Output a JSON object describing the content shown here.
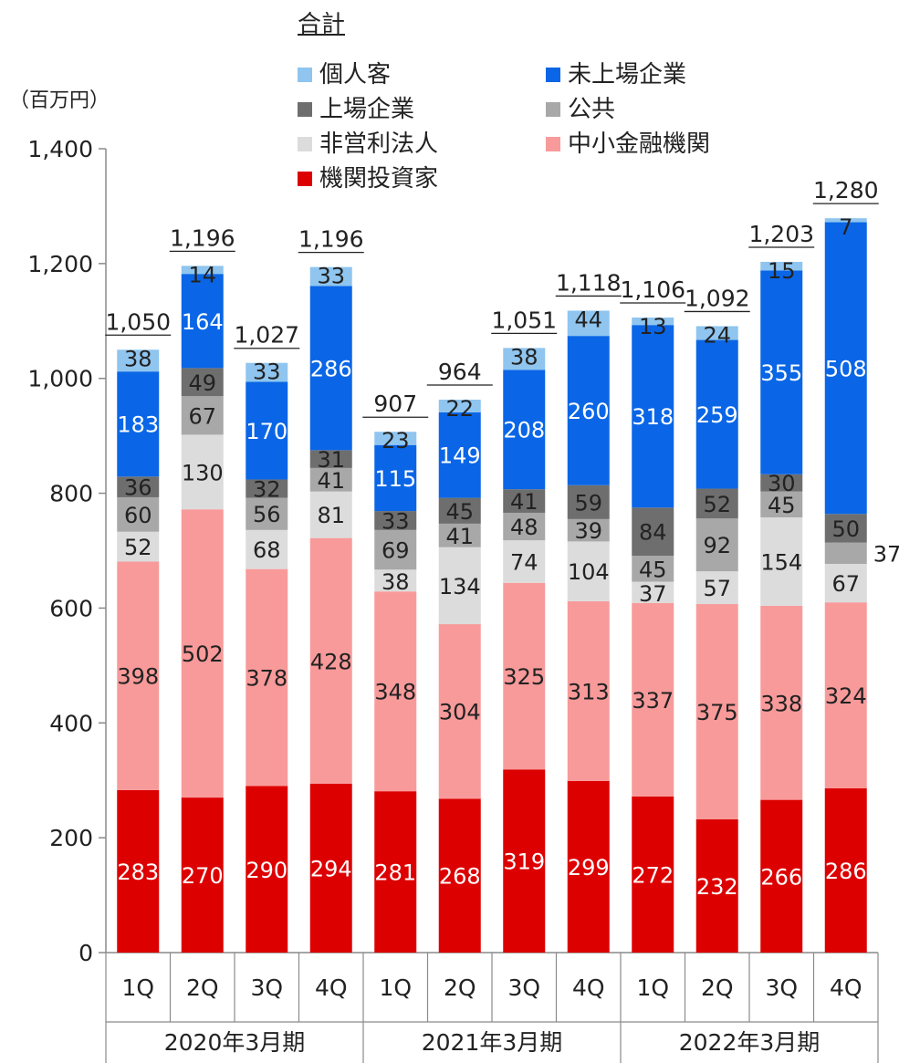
{
  "unit_label": "（百万円）",
  "legend_title": "合計",
  "colors": {
    "個人客": "#8fc5ef",
    "未上場企業": "#0a66e6",
    "上場企業": "#6e6e6e",
    "公共": "#a8a8a8",
    "非営利法人": "#dcdcdc",
    "中小金融機関": "#f89a9a",
    "機関投資家": "#dd0000"
  },
  "chart_data": {
    "type": "bar",
    "stacked": true,
    "categories": [
      "1Q",
      "2Q",
      "3Q",
      "4Q",
      "1Q",
      "2Q",
      "3Q",
      "4Q",
      "1Q",
      "2Q",
      "3Q",
      "4Q"
    ],
    "groups": [
      {
        "label": "2020年3月期",
        "start": 0,
        "count": 4
      },
      {
        "label": "2021年3月期",
        "start": 4,
        "count": 4
      },
      {
        "label": "2022年3月期",
        "start": 8,
        "count": 4
      }
    ],
    "series": [
      {
        "name": "機関投資家",
        "values": [
          283,
          270,
          290,
          294,
          281,
          268,
          319,
          299,
          272,
          232,
          266,
          286
        ]
      },
      {
        "name": "中小金融機関",
        "values": [
          398,
          502,
          378,
          428,
          348,
          304,
          325,
          313,
          337,
          375,
          338,
          324
        ]
      },
      {
        "name": "非営利法人",
        "values": [
          52,
          130,
          68,
          81,
          38,
          134,
          74,
          104,
          37,
          57,
          154,
          67
        ]
      },
      {
        "name": "公共",
        "values": [
          60,
          67,
          56,
          41,
          69,
          41,
          48,
          39,
          45,
          92,
          45,
          37
        ]
      },
      {
        "name": "上場企業",
        "values": [
          36,
          49,
          32,
          31,
          33,
          45,
          41,
          59,
          84,
          52,
          30,
          50
        ]
      },
      {
        "name": "未上場企業",
        "values": [
          183,
          164,
          170,
          286,
          115,
          149,
          208,
          260,
          318,
          259,
          355,
          508
        ]
      },
      {
        "name": "個人客",
        "values": [
          38,
          14,
          33,
          33,
          23,
          22,
          38,
          44,
          13,
          24,
          15,
          7
        ]
      }
    ],
    "totals": [
      "1,050",
      "1,196",
      "1,027",
      "1,196",
      "907",
      "964",
      "1,051",
      "1,118",
      "1,106",
      "1,092",
      "1,203",
      "1,280"
    ],
    "y_ticks": [
      "0",
      "200",
      "400",
      "600",
      "800",
      "1,000",
      "1,200",
      "1,400"
    ],
    "ylim": [
      0,
      1400
    ],
    "legend_order": [
      "個人客",
      "未上場企業",
      "上場企業",
      "公共",
      "非営利法人",
      "中小金融機関",
      "機関投資家"
    ]
  }
}
